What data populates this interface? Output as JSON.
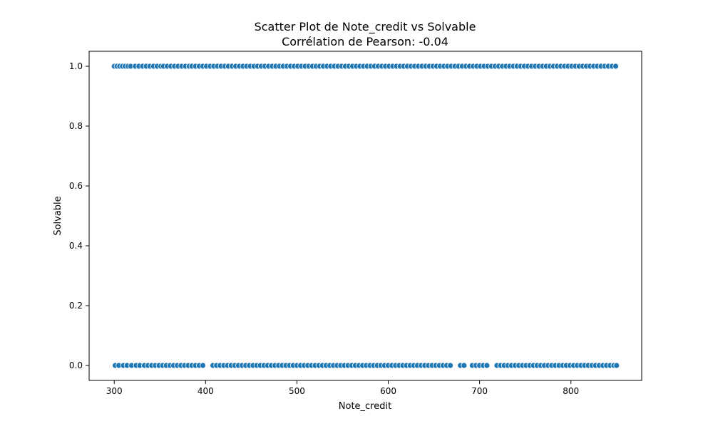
{
  "chart_data": {
    "type": "scatter",
    "title": "Scatter Plot de Note_credit vs Solvable",
    "subtitle": "Corrélation de Pearson: -0.04",
    "xlabel": "Note_credit",
    "ylabel": "Solvable",
    "xlim": [
      272.5,
      877.5
    ],
    "ylim": [
      -0.05,
      1.05
    ],
    "xticks": [
      300,
      400,
      500,
      600,
      700,
      800
    ],
    "yticks": [
      0.0,
      0.2,
      0.4,
      0.6,
      0.8,
      1.0
    ],
    "xtick_labels": [
      "300",
      "400",
      "500",
      "600",
      "700",
      "800"
    ],
    "ytick_labels": [
      "0.0",
      "0.2",
      "0.4",
      "0.6",
      "0.8",
      "1.0"
    ],
    "grid": false,
    "marker_color": "#1f77b4",
    "series": [
      {
        "y": 1,
        "x": [
          300,
          303,
          306,
          309,
          312,
          315,
          318,
          323,
          327,
          331,
          335,
          339,
          343,
          347,
          351,
          354,
          358,
          362,
          366,
          370,
          374,
          378,
          382,
          385,
          389,
          393,
          397,
          401,
          405,
          409,
          413,
          417,
          421,
          425,
          429,
          433,
          437,
          441,
          445,
          449,
          453,
          457,
          461,
          465,
          469,
          473,
          477,
          481,
          485,
          489,
          493,
          497,
          501,
          505,
          509,
          513,
          517,
          521,
          525,
          529,
          533,
          537,
          541,
          545,
          549,
          553,
          557,
          561,
          565,
          569,
          573,
          577,
          581,
          585,
          589,
          593,
          597,
          601,
          605,
          609,
          613,
          617,
          621,
          625,
          629,
          633,
          637,
          641,
          645,
          649,
          653,
          657,
          661,
          665,
          669,
          673,
          677,
          681,
          685,
          689,
          693,
          697,
          701,
          705,
          709,
          713,
          717,
          721,
          725,
          729,
          733,
          737,
          741,
          745,
          749,
          753,
          757,
          761,
          765,
          769,
          773,
          777,
          781,
          785,
          789,
          793,
          797,
          801,
          805,
          809,
          813,
          817,
          821,
          825,
          829,
          833,
          837,
          841,
          845,
          849
        ]
      },
      {
        "y": 0,
        "x": [
          301,
          305,
          310,
          314,
          319,
          324,
          328,
          333,
          337,
          341,
          345,
          349,
          353,
          357,
          361,
          365,
          369,
          373,
          377,
          381,
          385,
          389,
          393,
          397,
          408,
          412,
          416,
          420,
          424,
          428,
          432,
          436,
          440,
          444,
          448,
          452,
          456,
          460,
          464,
          468,
          472,
          476,
          480,
          484,
          488,
          492,
          496,
          500,
          504,
          508,
          512,
          516,
          520,
          524,
          528,
          532,
          536,
          540,
          544,
          548,
          552,
          556,
          560,
          564,
          568,
          572,
          576,
          580,
          584,
          588,
          592,
          596,
          600,
          604,
          608,
          612,
          616,
          620,
          624,
          628,
          632,
          636,
          640,
          644,
          648,
          652,
          656,
          660,
          664,
          668,
          679,
          683,
          692,
          696,
          700,
          704,
          708,
          719,
          723,
          727,
          731,
          735,
          739,
          743,
          747,
          751,
          755,
          759,
          763,
          767,
          771,
          775,
          779,
          783,
          787,
          791,
          795,
          799,
          803,
          807,
          811,
          815,
          819,
          823,
          827,
          831,
          835,
          839,
          843,
          847,
          850
        ]
      }
    ]
  }
}
